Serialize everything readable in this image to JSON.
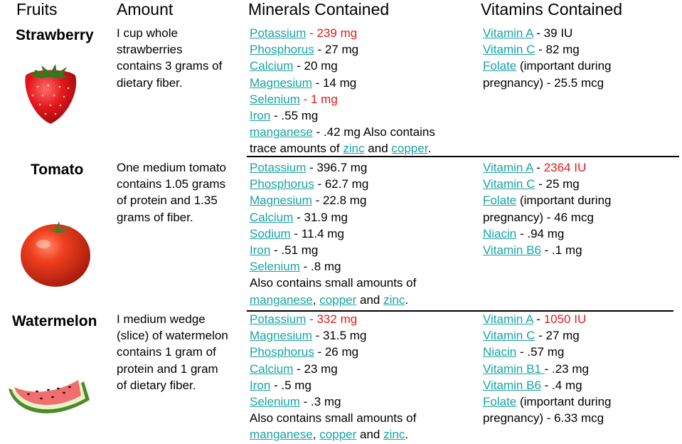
{
  "headers": {
    "fruits": "Fruits",
    "amount": "Amount",
    "minerals": "Minerals Contained",
    "vitamins": "Vitamins Contained"
  },
  "rows": [
    {
      "fruit": "Strawberry",
      "amount_lines": [
        "I cup whole",
        "strawberries",
        "contains 3 grams of",
        "dietary fiber."
      ],
      "minerals_lines": [
        [
          {
            "t": "Potassium",
            "link": true
          },
          {
            "t": " - 239 mg",
            "red": true
          }
        ],
        [
          {
            "t": "Phosphorus",
            "link": true
          },
          {
            "t": " - 27 mg"
          }
        ],
        [
          {
            "t": "Calcium",
            "link": true
          },
          {
            "t": " - 20 mg"
          }
        ],
        [
          {
            "t": "Magnesium",
            "link": true
          },
          {
            "t": " - 14 mg"
          }
        ],
        [
          {
            "t": "Selenium",
            "link": true
          },
          {
            "t": " - 1 mg",
            "red": true
          }
        ],
        [
          {
            "t": "Iron",
            "link": true
          },
          {
            "t": " - .55 mg"
          }
        ],
        [
          {
            "t": "manganese",
            "link": true
          },
          {
            "t": " - .42 mg Also contains"
          }
        ],
        [
          {
            "t": "trace amounts of "
          },
          {
            "t": "zinc",
            "link": true
          },
          {
            "t": " and "
          },
          {
            "t": "copper",
            "link": true
          },
          {
            "t": "."
          }
        ]
      ],
      "vitamins_lines": [
        [
          {
            "t": "Vitamin A",
            "link": true
          },
          {
            "t": " - 39 IU"
          }
        ],
        [
          {
            "t": "Vitamin C",
            "link": true
          },
          {
            "t": " - 82 mg"
          }
        ],
        [
          {
            "t": "Folate",
            "link": true
          },
          {
            "t": " (important during"
          }
        ],
        [
          {
            "t": "pregnancy) - 25.5 mcg"
          }
        ]
      ]
    },
    {
      "fruit": "Tomato",
      "amount_lines": [
        "One medium tomato",
        "contains 1.05 grams",
        "of protein and 1.35",
        "grams of fiber."
      ],
      "minerals_lines": [
        [
          {
            "t": "Potassium",
            "link": true
          },
          {
            "t": " - 396.7 mg"
          }
        ],
        [
          {
            "t": "Phosphorus",
            "link": true
          },
          {
            "t": " - 62.7 mg"
          }
        ],
        [
          {
            "t": "Magnesium",
            "link": true
          },
          {
            "t": " - 22.8 mg"
          }
        ],
        [
          {
            "t": "Calcium",
            "link": true
          },
          {
            "t": " - 31.9 mg"
          }
        ],
        [
          {
            "t": "Sodium",
            "link": true
          },
          {
            "t": " - 11.4 mg"
          }
        ],
        [
          {
            "t": "Iron",
            "link": true
          },
          {
            "t": " - .51 mg"
          }
        ],
        [
          {
            "t": "Selenium",
            "link": true
          },
          {
            "t": " - .8 mg"
          }
        ],
        [
          {
            "t": "Also contains small amounts of"
          }
        ],
        [
          {
            "t": "manganese",
            "link": true
          },
          {
            "t": ", "
          },
          {
            "t": "copper",
            "link": true
          },
          {
            "t": " and "
          },
          {
            "t": "zinc",
            "link": true
          },
          {
            "t": "."
          }
        ]
      ],
      "vitamins_lines": [
        [
          {
            "t": "Vitamin A",
            "link": true
          },
          {
            "t": " - "
          },
          {
            "t": "2364 IU",
            "red": true
          }
        ],
        [
          {
            "t": "Vitamin C",
            "link": true
          },
          {
            "t": " - 25 mg"
          }
        ],
        [
          {
            "t": "Folate",
            "link": true
          },
          {
            "t": " (important during"
          }
        ],
        [
          {
            "t": "pregnancy) - 46 mcg"
          }
        ],
        [
          {
            "t": "Niacin",
            "link": true
          },
          {
            "t": " - .94 mg"
          }
        ],
        [
          {
            "t": "Vitamin B6",
            "link": true
          },
          {
            "t": " - .1 mg"
          }
        ]
      ]
    },
    {
      "fruit": "Watermelon",
      "amount_lines": [
        "I medium wedge",
        "(slice) of watermelon",
        "contains 1 gram of",
        "protein and 1 gram",
        "of dietary fiber."
      ],
      "minerals_lines": [
        [
          {
            "t": "Potassium",
            "link": true
          },
          {
            "t": " - 332 mg",
            "red": true
          }
        ],
        [
          {
            "t": "Magnesium",
            "link": true
          },
          {
            "t": " - 31.5 mg"
          }
        ],
        [
          {
            "t": "Phosphorus",
            "link": true
          },
          {
            "t": " - 26 mg"
          }
        ],
        [
          {
            "t": "Calcium",
            "link": true
          },
          {
            "t": " - 23 mg"
          }
        ],
        [
          {
            "t": "Iron",
            "link": true
          },
          {
            "t": " - .5 mg"
          }
        ],
        [
          {
            "t": "Selenium",
            "link": true
          },
          {
            "t": " - .3 mg"
          }
        ],
        [
          {
            "t": "Also contains small amounts of"
          }
        ],
        [
          {
            "t": "manganese",
            "link": true
          },
          {
            "t": ", "
          },
          {
            "t": "copper",
            "link": true
          },
          {
            "t": " and "
          },
          {
            "t": "zinc",
            "link": true
          },
          {
            "t": "."
          }
        ]
      ],
      "vitamins_lines": [
        [
          {
            "t": "Vitamin A",
            "link": true
          },
          {
            "t": " - "
          },
          {
            "t": "1050 IU",
            "red": true
          }
        ],
        [
          {
            "t": "Vitamin C",
            "link": true
          },
          {
            "t": " - 27 mg"
          }
        ],
        [
          {
            "t": "Niacin",
            "link": true
          },
          {
            "t": " - .57 mg"
          }
        ],
        [
          {
            "t": "Vitamin B1 ",
            "link": true
          },
          {
            "t": " - .23 mg"
          }
        ],
        [
          {
            "t": "Vitamin B6",
            "link": true
          },
          {
            "t": " - .4 mg"
          }
        ],
        [
          {
            "t": "Folate",
            "link": true
          },
          {
            "t": " (important during"
          }
        ],
        [
          {
            "t": "pregnancy) - 6.33 mcg"
          }
        ]
      ]
    }
  ],
  "colors": {
    "link": "#1aa3a3",
    "highlight": "#e01b1b"
  }
}
